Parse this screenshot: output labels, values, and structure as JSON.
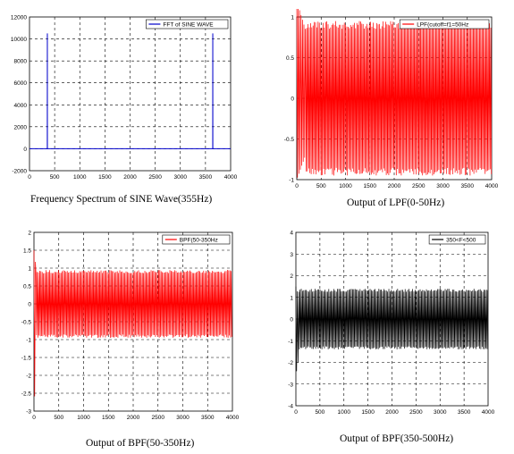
{
  "chart_data": [
    {
      "type": "line",
      "legend": "FFT of SINE WAVE",
      "legend_position": "top-right",
      "caption": "Frequency Spectrum of SINE Wave(355Hz)",
      "series_color": "#0000cc",
      "grid": true,
      "xlim": [
        0,
        4000
      ],
      "ylim": [
        -2000,
        12000
      ],
      "xticks": [
        "0",
        "500",
        "1000",
        "1500",
        "2000",
        "2500",
        "3000",
        "3500",
        "4000"
      ],
      "yticks": [
        "-2000",
        "0",
        "2000",
        "4000",
        "6000",
        "8000",
        "10000",
        "12000"
      ],
      "x": [
        0,
        354,
        355,
        356,
        3644,
        3645,
        3646,
        4000
      ],
      "y": [
        0,
        0,
        10500,
        0,
        0,
        10500,
        0,
        0
      ]
    },
    {
      "type": "line",
      "legend": "LPF(cutoff=f1=50Hz",
      "legend_position": "top-right",
      "caption": "Output of LPF(0-50Hz)",
      "series_color": "#ff0000",
      "grid": true,
      "xlim": [
        0,
        4000
      ],
      "ylim": [
        -1,
        1
      ],
      "xticks": [
        "0",
        "500",
        "1000",
        "1500",
        "2000",
        "2500",
        "3000",
        "3500",
        "4000"
      ],
      "yticks": [
        "-1",
        "-0.5",
        "0",
        "0.5",
        "1"
      ],
      "transient": {
        "x_end": 180,
        "peak_max": 1.2,
        "peak_min": -1.0
      },
      "steady": {
        "x_start": 180,
        "x_end": 4000,
        "max": 0.95,
        "min": -0.95
      }
    },
    {
      "type": "line",
      "legend": "BPF(50-350Hz",
      "legend_position": "top-right",
      "caption": "Output of BPF(50-350Hz)",
      "series_color": "#ff0000",
      "grid": true,
      "xlim": [
        0,
        4000
      ],
      "ylim": [
        -3,
        2
      ],
      "xticks": [
        "0",
        "500",
        "1000",
        "1500",
        "2000",
        "2500",
        "3000",
        "3500",
        "4000"
      ],
      "yticks": [
        "-3",
        "-2.5",
        "-2",
        "-1.5",
        "-1",
        "-0.5",
        "0",
        "0.5",
        "1",
        "1.5",
        "2"
      ],
      "transient": {
        "x_end": 40,
        "peak_max": 1.5,
        "peak_min": -2.9
      },
      "steady": {
        "x_start": 40,
        "x_end": 4000,
        "max": 0.95,
        "min": -0.95
      }
    },
    {
      "type": "line",
      "legend": "350<F<500",
      "legend_position": "top-right",
      "caption": "Output of BPF(350-500Hz)",
      "series_color": "#000000",
      "grid": true,
      "xlim": [
        0,
        4000
      ],
      "ylim": [
        -4,
        4
      ],
      "xticks": [
        "0",
        "500",
        "1000",
        "1500",
        "2000",
        "2500",
        "3000",
        "3500",
        "4000"
      ],
      "yticks": [
        "-4",
        "-3",
        "-2",
        "-1",
        "0",
        "1",
        "2",
        "3",
        "4"
      ],
      "transient": {
        "x_end": 60,
        "peak_max": 1.5,
        "peak_min": -2.6
      },
      "steady": {
        "x_start": 60,
        "x_end": 4000,
        "max": 1.4,
        "min": -1.4
      }
    }
  ]
}
